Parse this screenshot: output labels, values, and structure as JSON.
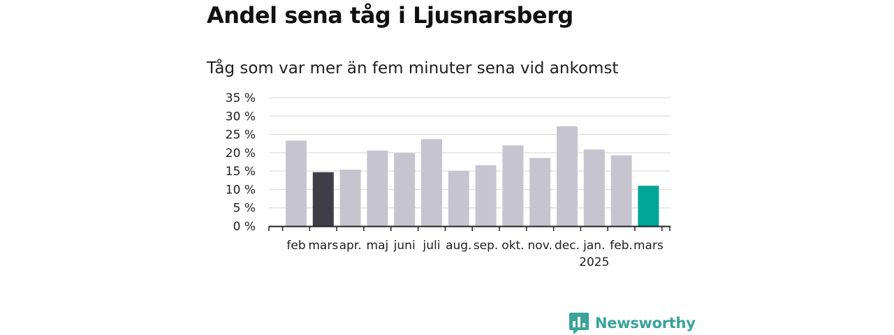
{
  "title": "Andel sena tåg i Ljusnarsberg",
  "subtitle": "Tåg som var mer än fem minuter sena vid ankomst",
  "brand": {
    "name": "Newsworthy",
    "color": "#3aa39a",
    "icon": "newsworthy-logo-icon"
  },
  "colors": {
    "default_bar": "#c6c5cf",
    "highlight_dark": "#3e3d48",
    "highlight_current": "#00a597",
    "grid": "#dddddd",
    "axis": "#222222"
  },
  "chart_data": {
    "type": "bar",
    "categories": [
      "feb",
      "mars",
      "apr.",
      "maj",
      "juni",
      "juli",
      "aug.",
      "sep.",
      "okt.",
      "nov.",
      "dec.",
      "jan.",
      "feb.",
      "mars"
    ],
    "category_sublabels": [
      "",
      "",
      "",
      "",
      "",
      "",
      "",
      "",
      "",
      "",
      "",
      "2025",
      "",
      ""
    ],
    "values": [
      23.3,
      14.7,
      15.4,
      20.6,
      19.9,
      23.7,
      15.1,
      16.6,
      22.0,
      18.6,
      27.2,
      20.9,
      19.3,
      11.0
    ],
    "bar_colors": [
      "#c6c5cf",
      "#3e3d48",
      "#c6c5cf",
      "#c6c5cf",
      "#c6c5cf",
      "#c6c5cf",
      "#c6c5cf",
      "#c6c5cf",
      "#c6c5cf",
      "#c6c5cf",
      "#c6c5cf",
      "#c6c5cf",
      "#c6c5cf",
      "#00a597"
    ],
    "y_ticks": [
      0,
      5,
      10,
      15,
      20,
      25,
      30,
      35
    ],
    "y_tick_suffix": " %",
    "ylim": [
      0,
      35
    ],
    "grid": true,
    "xlabel": "",
    "ylabel": ""
  }
}
